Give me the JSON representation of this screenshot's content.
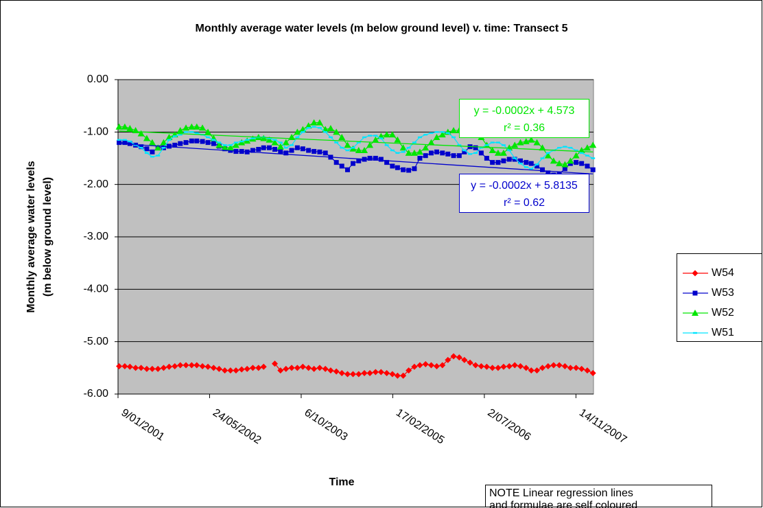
{
  "chart_data": {
    "type": "line",
    "title": "Monthly average water levels (m below ground level) v. time: Transect 5",
    "ylabel": [
      "Monthly average water levels",
      "(m below ground level)"
    ],
    "xlabel": "Time",
    "note": [
      "NOTE Linear regression lines",
      "and formulae are self coloured"
    ],
    "x": [
      "2001-01",
      "2001-02",
      "2001-03",
      "2001-04",
      "2001-05",
      "2001-06",
      "2001-07",
      "2001-08",
      "2001-09",
      "2001-10",
      "2001-11",
      "2001-12",
      "2002-01",
      "2002-02",
      "2002-03",
      "2002-04",
      "2002-05",
      "2002-06",
      "2002-07",
      "2002-08",
      "2002-09",
      "2002-10",
      "2002-11",
      "2002-12",
      "2003-01",
      "2003-02",
      "2003-03",
      "2003-04",
      "2003-05",
      "2003-06",
      "2003-07",
      "2003-08",
      "2003-09",
      "2003-10",
      "2003-11",
      "2003-12",
      "2004-01",
      "2004-02",
      "2004-03",
      "2004-04",
      "2004-05",
      "2004-06",
      "2004-07",
      "2004-08",
      "2004-09",
      "2004-10",
      "2004-11",
      "2004-12",
      "2005-01",
      "2005-02",
      "2005-03",
      "2005-04",
      "2005-05",
      "2005-06",
      "2005-07",
      "2005-08",
      "2005-09",
      "2005-10",
      "2005-11",
      "2005-12",
      "2006-01",
      "2006-02",
      "2006-03",
      "2006-04",
      "2006-05",
      "2006-06",
      "2006-07",
      "2006-08",
      "2006-09",
      "2006-10",
      "2006-11",
      "2006-12",
      "2007-01",
      "2007-02",
      "2007-03",
      "2007-04",
      "2007-05",
      "2007-06",
      "2007-07",
      "2007-08",
      "2007-09",
      "2007-10",
      "2007-11",
      "2007-12",
      "2008-01",
      "2008-02"
    ],
    "xlim": [
      "2001-01-09",
      "2008-02-18"
    ],
    "xticks": [
      {
        "value": "2001-01-09",
        "label": "9/01/2001"
      },
      {
        "value": "2002-05-24",
        "label": "24/05/2002"
      },
      {
        "value": "2003-10-06",
        "label": "6/10/2003"
      },
      {
        "value": "2005-02-17",
        "label": "17/02/2005"
      },
      {
        "value": "2006-07-02",
        "label": "2/07/2006"
      },
      {
        "value": "2007-11-14",
        "label": "14/11/2007"
      }
    ],
    "ylim": [
      -6,
      0
    ],
    "yticks": [
      {
        "value": -6,
        "label": "-6.00"
      },
      {
        "value": -5,
        "label": "-5.00"
      },
      {
        "value": -4,
        "label": "-4.00"
      },
      {
        "value": -3,
        "label": "-3.00"
      },
      {
        "value": -2,
        "label": "-2.00"
      },
      {
        "value": -1,
        "label": "-1.00"
      },
      {
        "value": 0,
        "label": "0.00"
      }
    ],
    "grid": true,
    "legend": "right",
    "series": [
      {
        "name": "W54",
        "color": "#ff0000",
        "marker": "diamond",
        "values": [
          -5.47,
          -5.47,
          -5.48,
          -5.5,
          -5.5,
          -5.52,
          -5.52,
          -5.52,
          -5.5,
          -5.48,
          -5.47,
          -5.45,
          -5.45,
          -5.45,
          -5.45,
          -5.47,
          -5.48,
          -5.5,
          -5.52,
          -5.55,
          -5.55,
          -5.55,
          -5.53,
          -5.52,
          -5.5,
          -5.5,
          -5.48,
          null,
          -5.42,
          -5.55,
          -5.52,
          -5.5,
          -5.5,
          -5.48,
          -5.5,
          -5.52,
          -5.5,
          -5.52,
          -5.55,
          -5.57,
          -5.6,
          -5.62,
          -5.62,
          -5.62,
          -5.6,
          -5.6,
          -5.58,
          -5.58,
          -5.6,
          -5.62,
          -5.65,
          -5.65,
          -5.55,
          -5.48,
          -5.45,
          -5.43,
          -5.45,
          -5.47,
          -5.45,
          -5.35,
          -5.28,
          -5.3,
          -5.35,
          -5.4,
          -5.45,
          -5.47,
          -5.48,
          -5.5,
          -5.5,
          -5.48,
          -5.47,
          -5.45,
          -5.47,
          -5.5,
          -5.55,
          -5.55,
          -5.5,
          -5.47,
          -5.45,
          -5.45,
          -5.47,
          -5.5,
          -5.5,
          -5.52,
          -5.55,
          -5.6
        ]
      },
      {
        "name": "W53",
        "color": "#0000cc",
        "marker": "square",
        "trend": {
          "equation": "y = -0.0002x + 5.8135",
          "r2": "r² = 0.62",
          "start": -1.22,
          "end": -1.8
        },
        "values": [
          -1.2,
          -1.2,
          -1.22,
          -1.25,
          -1.28,
          -1.32,
          -1.38,
          -1.3,
          -1.3,
          -1.27,
          -1.25,
          -1.22,
          -1.2,
          -1.17,
          -1.17,
          -1.18,
          -1.2,
          -1.22,
          -1.27,
          -1.32,
          -1.35,
          -1.37,
          -1.37,
          -1.38,
          -1.35,
          -1.33,
          -1.3,
          -1.3,
          -1.33,
          -1.37,
          -1.4,
          -1.35,
          -1.3,
          -1.32,
          -1.35,
          -1.37,
          -1.38,
          -1.4,
          -1.48,
          -1.58,
          -1.65,
          -1.72,
          -1.6,
          -1.55,
          -1.52,
          -1.5,
          -1.5,
          -1.52,
          -1.58,
          -1.65,
          -1.68,
          -1.72,
          -1.73,
          -1.7,
          -1.5,
          -1.45,
          -1.4,
          -1.38,
          -1.4,
          -1.42,
          -1.45,
          -1.45,
          -1.38,
          -1.28,
          -1.3,
          -1.4,
          -1.5,
          -1.58,
          -1.58,
          -1.55,
          -1.52,
          -1.52,
          -1.55,
          -1.58,
          -1.6,
          -1.65,
          -1.72,
          -1.78,
          -1.82,
          -1.8,
          -1.7,
          -1.6,
          -1.58,
          -1.6,
          -1.65,
          -1.72
        ]
      },
      {
        "name": "W52",
        "color": "#00e600",
        "marker": "triangle",
        "trend": {
          "equation": "y = -0.0002x + 4.573",
          "r2": "r² = 0.36",
          "start": -0.98,
          "end": -1.38
        },
        "values": [
          -0.9,
          -0.9,
          -0.93,
          -0.97,
          -1.03,
          -1.12,
          -1.2,
          -1.3,
          -1.2,
          -1.1,
          -1.05,
          -0.97,
          -0.92,
          -0.9,
          -0.9,
          -0.92,
          -1.0,
          -1.12,
          -1.25,
          -1.3,
          -1.3,
          -1.25,
          -1.2,
          -1.17,
          -1.13,
          -1.1,
          -1.12,
          -1.15,
          -1.2,
          -1.28,
          -1.2,
          -1.1,
          -1.0,
          -0.95,
          -0.88,
          -0.82,
          -0.82,
          -0.95,
          -0.93,
          -1.0,
          -1.1,
          -1.25,
          -1.32,
          -1.35,
          -1.35,
          -1.25,
          -1.15,
          -1.08,
          -1.05,
          -1.05,
          -1.15,
          -1.3,
          -1.4,
          -1.4,
          -1.38,
          -1.3,
          -1.2,
          -1.1,
          -1.05,
          -1.0,
          -0.97,
          -0.97,
          -0.95,
          -0.95,
          -0.98,
          -1.1,
          -1.25,
          -1.35,
          -1.4,
          -1.4,
          -1.3,
          -1.25,
          -1.2,
          -1.18,
          -1.15,
          -1.2,
          -1.3,
          -1.45,
          -1.55,
          -1.6,
          -1.62,
          -1.55,
          -1.45,
          -1.35,
          -1.3,
          -1.25
        ]
      },
      {
        "name": "W51",
        "color": "#00e5ff",
        "marker": "dash",
        "values": [
          -1.15,
          -1.15,
          -1.18,
          -1.25,
          -1.3,
          -1.4,
          -1.47,
          -1.45,
          -1.3,
          -1.15,
          -1.08,
          -1.05,
          -1.0,
          -1.0,
          -1.02,
          -1.05,
          -1.1,
          -1.15,
          -1.2,
          -1.25,
          -1.25,
          -1.2,
          -1.18,
          -1.15,
          -1.12,
          -1.1,
          -1.1,
          -1.12,
          -1.15,
          -1.2,
          -1.3,
          -1.25,
          -1.1,
          -1.0,
          -0.92,
          -0.9,
          -0.92,
          -1.0,
          -1.1,
          -1.2,
          -1.3,
          -1.35,
          -1.3,
          -1.2,
          -1.1,
          -1.07,
          -1.07,
          -1.12,
          -1.25,
          -1.35,
          -1.4,
          -1.38,
          -1.3,
          -1.2,
          -1.1,
          -1.05,
          -1.02,
          -1.0,
          -1.0,
          -1.02,
          -1.1,
          -1.25,
          -1.35,
          -1.42,
          -1.4,
          -1.3,
          -1.25,
          -1.2,
          -1.2,
          -1.25,
          -1.35,
          -1.5,
          -1.6,
          -1.67,
          -1.7,
          -1.62,
          -1.5,
          -1.4,
          -1.35,
          -1.3,
          -1.28,
          -1.3,
          -1.35,
          -1.4,
          -1.45,
          -1.5
        ]
      }
    ]
  }
}
